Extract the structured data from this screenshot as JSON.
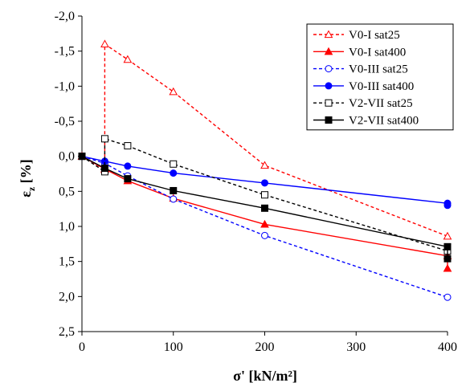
{
  "chart_data": {
    "type": "line",
    "xlabel": "σ' [kN/m²]",
    "ylabel_main": "ε",
    "ylabel_sub": "z",
    "ylabel_unit": " [%]",
    "xlim": [
      0,
      400
    ],
    "ylim": [
      2.5,
      -2.0
    ],
    "y_axis_inverted": true,
    "x_ticks": [
      0,
      100,
      200,
      300,
      400
    ],
    "x_tick_labels": [
      "0",
      "100",
      "200",
      "300",
      "400"
    ],
    "y_ticks": [
      -2.0,
      -1.5,
      -1.0,
      -0.5,
      0.0,
      0.5,
      1.0,
      1.5,
      2.0,
      2.5
    ],
    "y_tick_labels": [
      "-2,0",
      "-1,5",
      "-1,0",
      "-0,5",
      "0,0",
      "0,5",
      "1,0",
      "1,5",
      "2,0",
      "2,5"
    ],
    "grid": false,
    "legend_position": "top-right",
    "series": [
      {
        "name": "V0-I sat25",
        "color": "#ff0000",
        "dashed": true,
        "marker": "triangle-open",
        "points": [
          [
            0,
            0.0
          ],
          [
            25,
            0.19
          ],
          [
            25,
            -1.6
          ],
          [
            50,
            -1.38
          ],
          [
            100,
            -0.92
          ],
          [
            200,
            0.13
          ],
          [
            400,
            1.14
          ]
        ]
      },
      {
        "name": "V0-I sat400",
        "color": "#ff0000",
        "dashed": false,
        "marker": "triangle-filled",
        "points": [
          [
            0,
            0.0
          ],
          [
            25,
            0.18
          ],
          [
            50,
            0.35
          ],
          [
            100,
            0.6
          ],
          [
            200,
            0.97
          ],
          [
            400,
            1.42
          ],
          [
            400,
            1.6
          ]
        ]
      },
      {
        "name": "V0-III sat25",
        "color": "#0000ff",
        "dashed": true,
        "marker": "circle-open",
        "points": [
          [
            0,
            0.0
          ],
          [
            25,
            0.1
          ],
          [
            50,
            0.28
          ],
          [
            100,
            0.61
          ],
          [
            200,
            1.13
          ],
          [
            400,
            2.01
          ]
        ]
      },
      {
        "name": "V0-III sat400",
        "color": "#0000ff",
        "dashed": false,
        "marker": "circle-filled",
        "points": [
          [
            0,
            0.0
          ],
          [
            25,
            0.07
          ],
          [
            50,
            0.14
          ],
          [
            100,
            0.24
          ],
          [
            200,
            0.38
          ],
          [
            400,
            0.67
          ],
          [
            400,
            0.7
          ]
        ]
      },
      {
        "name": "V2-VII sat25",
        "color": "#000000",
        "dashed": true,
        "marker": "square-open",
        "points": [
          [
            0,
            0.0
          ],
          [
            25,
            0.22
          ],
          [
            25,
            -0.25
          ],
          [
            50,
            -0.15
          ],
          [
            100,
            0.11
          ],
          [
            200,
            0.55
          ],
          [
            400,
            1.35
          ]
        ]
      },
      {
        "name": "V2-VII sat400",
        "color": "#000000",
        "dashed": false,
        "marker": "square-filled",
        "points": [
          [
            0,
            0.0
          ],
          [
            25,
            0.17
          ],
          [
            50,
            0.32
          ],
          [
            100,
            0.49
          ],
          [
            200,
            0.74
          ],
          [
            400,
            1.29
          ],
          [
            400,
            1.46
          ]
        ]
      }
    ]
  }
}
